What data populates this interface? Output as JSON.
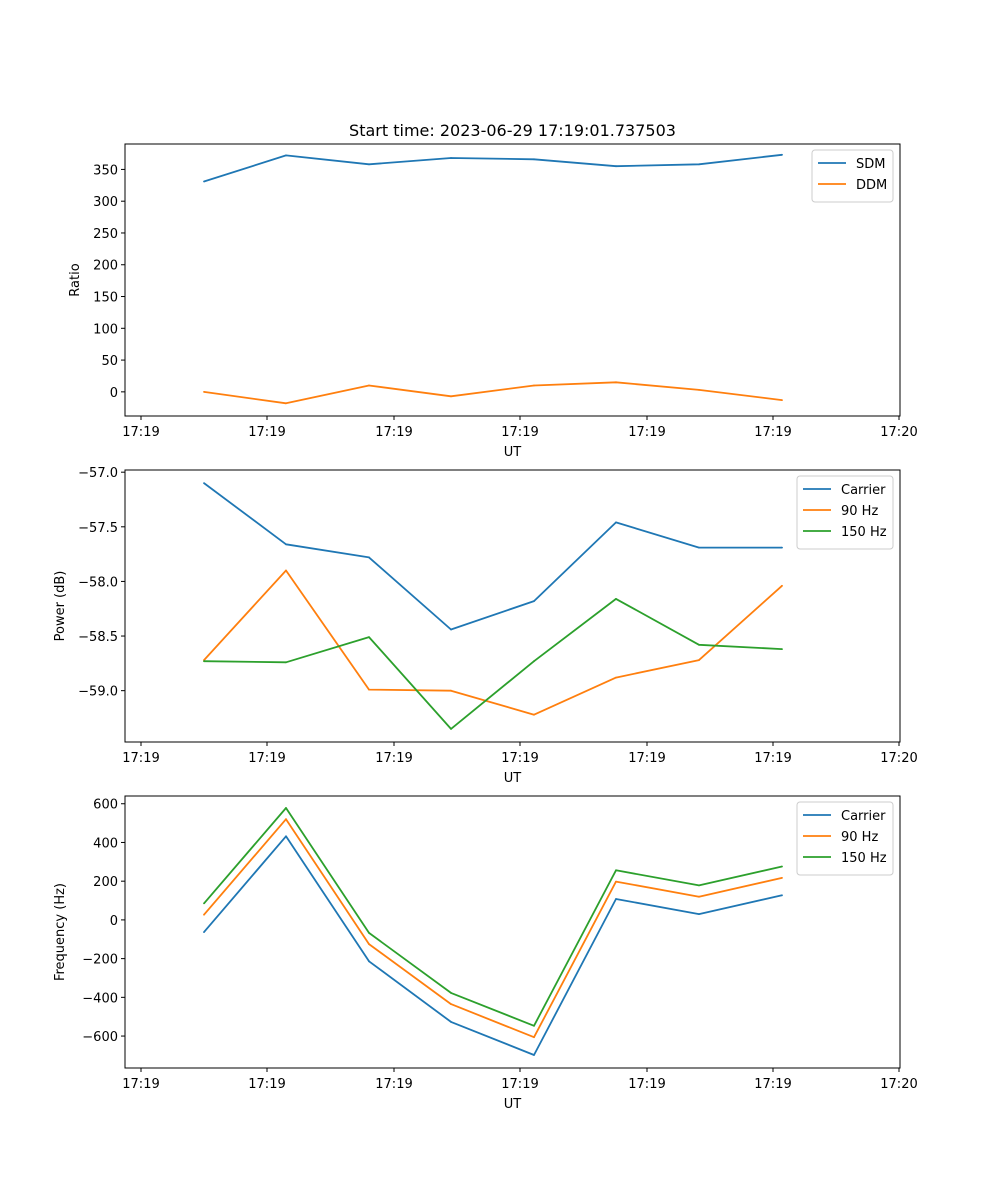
{
  "chart_data": [
    {
      "type": "line",
      "title": "Start time: 2023-06-29 17:19:01.737503",
      "xlabel": "UT",
      "ylabel": "Ratio",
      "x_tick_labels": [
        "17:19",
        "17:19",
        "17:19",
        "17:19",
        "17:19",
        "17:19",
        "17:20"
      ],
      "y_ticks": [
        0,
        50,
        100,
        150,
        200,
        250,
        300,
        350
      ],
      "y_tick_labels": [
        "0",
        "50",
        "100",
        "150",
        "200",
        "250",
        "300",
        "350"
      ],
      "ylim": [
        -38,
        390
      ],
      "grid": false,
      "legend_position": "top-right",
      "series": [
        {
          "name": "SDM",
          "color": "#1f77b4",
          "values": [
            331,
            372,
            358,
            368,
            366,
            355,
            358,
            373
          ]
        },
        {
          "name": "DDM",
          "color": "#ff7f0e",
          "values": [
            0,
            -18,
            10,
            -7,
            10,
            15,
            3,
            -13
          ]
        }
      ]
    },
    {
      "type": "line",
      "title": "",
      "xlabel": "UT",
      "ylabel": "Power (dB)",
      "x_tick_labels": [
        "17:19",
        "17:19",
        "17:19",
        "17:19",
        "17:19",
        "17:19",
        "17:20"
      ],
      "y_ticks": [
        -57.0,
        -57.5,
        -58.0,
        -58.5,
        -59.0
      ],
      "y_tick_labels": [
        "−57.0",
        "−57.5",
        "−58.0",
        "−58.5",
        "−59.0"
      ],
      "ylim": [
        -59.47,
        -56.98
      ],
      "grid": false,
      "legend_position": "top-right",
      "series": [
        {
          "name": "Carrier",
          "color": "#1f77b4",
          "values": [
            -57.1,
            -57.66,
            -57.78,
            -58.44,
            -58.18,
            -57.46,
            -57.69,
            -57.69
          ]
        },
        {
          "name": "90 Hz",
          "color": "#ff7f0e",
          "values": [
            -58.72,
            -57.9,
            -58.99,
            -59.0,
            -59.22,
            -58.88,
            -58.72,
            -58.04
          ]
        },
        {
          "name": "150 Hz",
          "color": "#2ca02c",
          "values": [
            -58.73,
            -58.74,
            -58.51,
            -59.35,
            -58.73,
            -58.16,
            -58.58,
            -58.62
          ]
        }
      ]
    },
    {
      "type": "line",
      "title": "",
      "xlabel": "UT",
      "ylabel": "Frequency (Hz)",
      "x_tick_labels": [
        "17:19",
        "17:19",
        "17:19",
        "17:19",
        "17:19",
        "17:19",
        "17:20"
      ],
      "y_ticks": [
        -600,
        -400,
        -200,
        0,
        200,
        400,
        600
      ],
      "y_tick_labels": [
        "−600",
        "−400",
        "−200",
        "0",
        "200",
        "400",
        "600"
      ],
      "ylim": [
        -765,
        640
      ],
      "grid": false,
      "legend_position": "top-right",
      "series": [
        {
          "name": "Carrier",
          "color": "#1f77b4",
          "values": [
            -63,
            432,
            -214,
            -527,
            -698,
            108,
            30,
            127
          ]
        },
        {
          "name": "90 Hz",
          "color": "#ff7f0e",
          "values": [
            27,
            520,
            -125,
            -435,
            -606,
            198,
            120,
            217
          ]
        },
        {
          "name": "150 Hz",
          "color": "#2ca02c",
          "values": [
            85,
            578,
            -67,
            -377,
            -547,
            256,
            178,
            276
          ]
        }
      ]
    }
  ]
}
